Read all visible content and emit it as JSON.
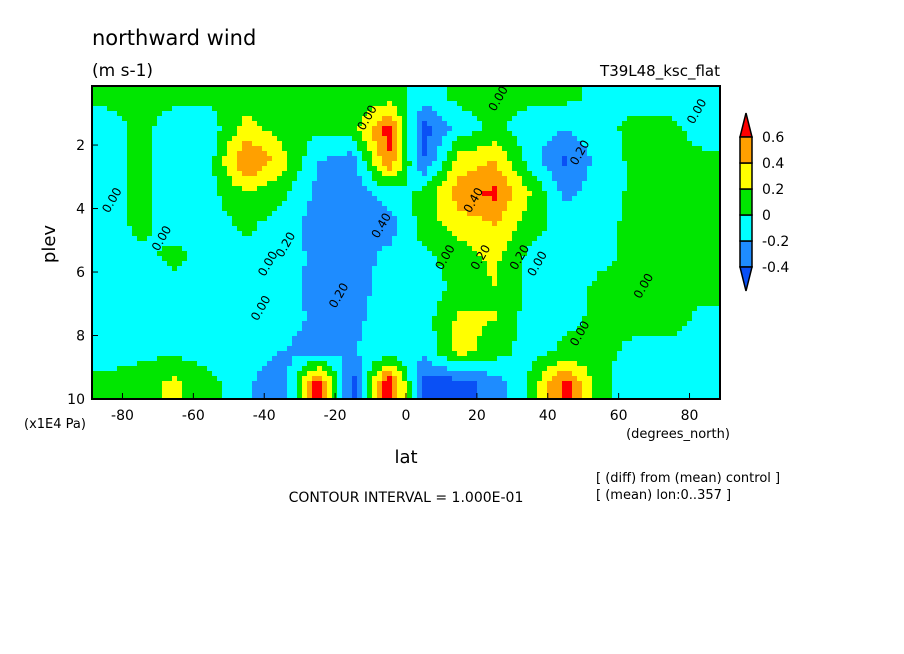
{
  "chart_data": {
    "type": "heatmap",
    "title": "northward wind",
    "units": "(m s-1)",
    "experiment": "T39L48_ksc_flat",
    "xlabel": "lat",
    "xunits": "(degrees_north)",
    "ylabel": "plev",
    "yunits": "(x1E4 Pa)",
    "xlim": [
      -88.6,
      88.6
    ],
    "ylim": [
      10,
      0.14
    ],
    "xticks": [
      "-80",
      "-60",
      "-40",
      "-20",
      "0",
      "20",
      "40",
      "60",
      "80"
    ],
    "xtick_values": [
      -80,
      -60,
      -40,
      -20,
      0,
      20,
      40,
      60,
      80
    ],
    "yticks": [
      "2",
      "4",
      "6",
      "8",
      "10"
    ],
    "ytick_values": [
      2,
      4,
      6,
      8,
      10
    ],
    "contour_interval_label": "CONTOUR INTERVAL = 1.000E-01",
    "notes": [
      "[ (diff) from (mean) control ]",
      "[ (mean) lon:0..357 ]"
    ],
    "colorbar": {
      "levels": [
        -0.4,
        -0.2,
        0,
        0.2,
        0.4,
        0.6
      ],
      "labels": [
        "-0.4",
        "-0.2",
        "0",
        "0.2",
        "0.4",
        "0.6"
      ],
      "colors": [
        "#0a50f5",
        "#1e8cff",
        "#00ffff",
        "#00e600",
        "#ffff00",
        "#ffa000",
        "#ff0000"
      ]
    },
    "lat": [
      -85,
      -75,
      -65,
      -55,
      -45,
      -35,
      -25,
      -15,
      -5,
      5,
      15,
      25,
      35,
      45,
      55,
      65,
      75,
      85
    ],
    "plev": [
      0.5,
      1.5,
      2.5,
      3.5,
      4.5,
      5.5,
      6.5,
      7.5,
      8.5,
      9.5
    ],
    "values": [
      [
        0.05,
        0.05,
        0.05,
        0.05,
        0.05,
        0.05,
        0.05,
        0.05,
        0.1,
        -0.1,
        0.05,
        0.05,
        0.05,
        0.05,
        -0.05,
        -0.05,
        -0.1,
        -0.1
      ],
      [
        -0.1,
        0.05,
        -0.1,
        -0.1,
        0.3,
        0.1,
        0.05,
        0.1,
        0.7,
        -0.5,
        -0.1,
        0.05,
        -0.1,
        -0.2,
        -0.05,
        0.05,
        0.05,
        -0.1
      ],
      [
        -0.1,
        0.05,
        -0.1,
        -0.05,
        0.65,
        0.3,
        -0.2,
        -0.3,
        0.6,
        -0.4,
        0.3,
        0.4,
        -0.1,
        -0.45,
        -0.1,
        0.05,
        0.05,
        0.05
      ],
      [
        -0.1,
        0.05,
        -0.1,
        -0.05,
        0.2,
        0.05,
        -0.25,
        -0.3,
        -0.1,
        0.05,
        0.5,
        0.65,
        0.2,
        -0.25,
        -0.1,
        0.05,
        0.05,
        0.05
      ],
      [
        -0.1,
        0.05,
        -0.1,
        -0.1,
        0.05,
        -0.1,
        -0.3,
        -0.35,
        -0.3,
        0.1,
        0.3,
        0.4,
        0.1,
        -0.1,
        -0.05,
        0.05,
        0.05,
        0.05
      ],
      [
        -0.1,
        -0.05,
        0.05,
        -0.1,
        -0.05,
        -0.1,
        -0.25,
        -0.3,
        -0.15,
        -0.05,
        0.1,
        0.25,
        -0.05,
        -0.1,
        -0.05,
        0.05,
        0.05,
        0.05
      ],
      [
        -0.1,
        -0.1,
        -0.05,
        -0.1,
        -0.05,
        -0.15,
        -0.25,
        -0.3,
        -0.1,
        -0.1,
        0.05,
        0.2,
        -0.05,
        -0.1,
        0.05,
        0.05,
        0.05,
        0.05
      ],
      [
        -0.1,
        -0.1,
        -0.1,
        -0.05,
        -0.1,
        -0.1,
        -0.25,
        -0.25,
        -0.1,
        -0.1,
        0.25,
        0.2,
        -0.1,
        -0.05,
        0.05,
        0.05,
        0.05,
        -0.05
      ],
      [
        -0.1,
        -0.05,
        -0.05,
        -0.1,
        -0.1,
        -0.2,
        -0.3,
        -0.2,
        -0.15,
        -0.15,
        0.3,
        0.1,
        -0.1,
        0.05,
        0.05,
        -0.05,
        -0.05,
        -0.1
      ],
      [
        0.05,
        0.1,
        0.25,
        0.05,
        -0.15,
        -0.4,
        0.7,
        -0.5,
        0.8,
        -0.5,
        -0.5,
        -0.3,
        0.05,
        0.7,
        0.05,
        -0.15,
        -0.1,
        -0.1
      ]
    ],
    "contour_labels": [
      {
        "text": "0.00",
        "lat": -82,
        "plev": 3.8
      },
      {
        "text": "0.00",
        "lat": -68,
        "plev": 5.0
      },
      {
        "text": "0.00",
        "lat": -40,
        "plev": 7.2
      },
      {
        "text": "0.00",
        "lat": -38,
        "plev": 5.8
      },
      {
        "text": "0.20",
        "lat": -33,
        "plev": 5.2
      },
      {
        "text": "0.20",
        "lat": -18,
        "plev": 6.8
      },
      {
        "text": "0.40",
        "lat": -6,
        "plev": 4.6
      },
      {
        "text": "0.00",
        "lat": -10,
        "plev": 1.2
      },
      {
        "text": "0.00",
        "lat": 27,
        "plev": 0.6
      },
      {
        "text": "0.40",
        "lat": 20,
        "plev": 3.8
      },
      {
        "text": "0.00",
        "lat": 12,
        "plev": 5.6
      },
      {
        "text": "0.20",
        "lat": 22,
        "plev": 5.6
      },
      {
        "text": "0.20",
        "lat": 33,
        "plev": 5.6
      },
      {
        "text": "0.00",
        "lat": 38,
        "plev": 5.8
      },
      {
        "text": "0.20",
        "lat": 50,
        "plev": 2.3
      },
      {
        "text": "0.00",
        "lat": 50,
        "plev": 8.0
      },
      {
        "text": "0.00",
        "lat": 68,
        "plev": 6.5
      },
      {
        "text": "0.00",
        "lat": 83,
        "plev": 1.0
      }
    ]
  }
}
